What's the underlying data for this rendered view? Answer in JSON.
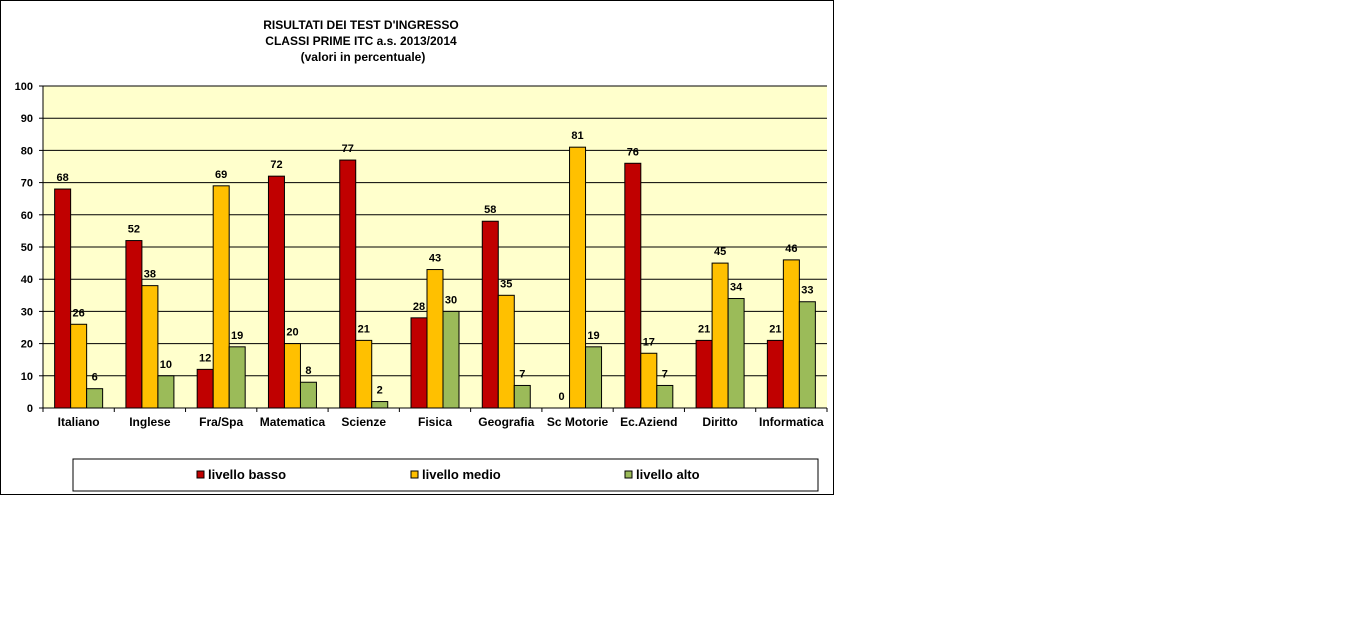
{
  "chart_data": {
    "type": "bar",
    "title_lines": [
      "RISULTATI DEI TEST D'INGRESSO",
      "CLASSI PRIME  ITC a.s. 2013/2014",
      "(valori in percentuale)"
    ],
    "categories": [
      "Italiano",
      "Inglese",
      "Fra/Spa",
      "Matematica",
      "Scienze",
      "Fisica",
      "Geografia",
      "Sc Motorie",
      "Ec.Aziend",
      "Diritto",
      "Informatica"
    ],
    "series": [
      {
        "name": "livello basso",
        "color": "#c00000",
        "values": [
          68,
          52,
          12,
          72,
          77,
          28,
          58,
          0,
          76,
          21,
          21
        ]
      },
      {
        "name": "livello medio",
        "color": "#ffc000",
        "values": [
          26,
          38,
          69,
          20,
          21,
          43,
          35,
          81,
          17,
          45,
          46
        ]
      },
      {
        "name": "livello alto",
        "color": "#9bbb59",
        "values": [
          6,
          10,
          19,
          8,
          2,
          30,
          7,
          19,
          7,
          34,
          33
        ]
      }
    ],
    "ylim": [
      0,
      100
    ],
    "yticks": [
      0,
      10,
      20,
      30,
      40,
      50,
      60,
      70,
      80,
      90,
      100
    ],
    "xlabel": "",
    "ylabel": "",
    "grid": true,
    "plot_background": "#ffffcc",
    "legend_position": "bottom"
  }
}
